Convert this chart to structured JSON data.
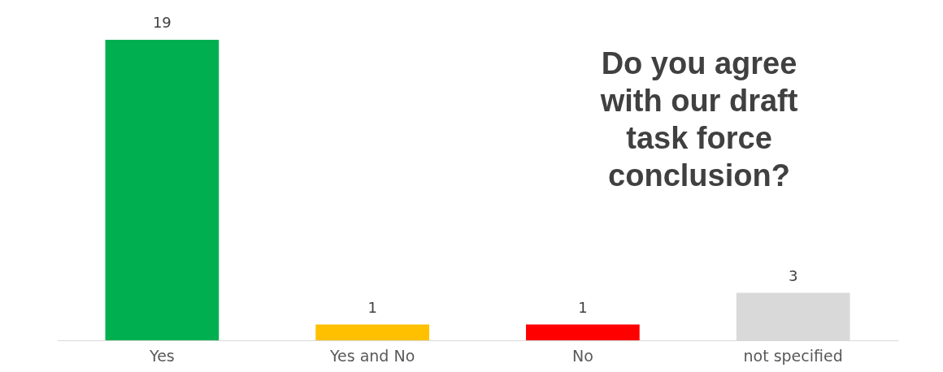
{
  "chart_data": {
    "type": "bar",
    "title": "Do you agree with our draft task force conclusion?",
    "categories": [
      "Yes",
      "Yes and No",
      "No",
      "not specified"
    ],
    "values": [
      19,
      1,
      1,
      3
    ],
    "colors": [
      "#00b050",
      "#ffc000",
      "#ff0000",
      "#d9d9d9"
    ],
    "data_labels": true
  }
}
